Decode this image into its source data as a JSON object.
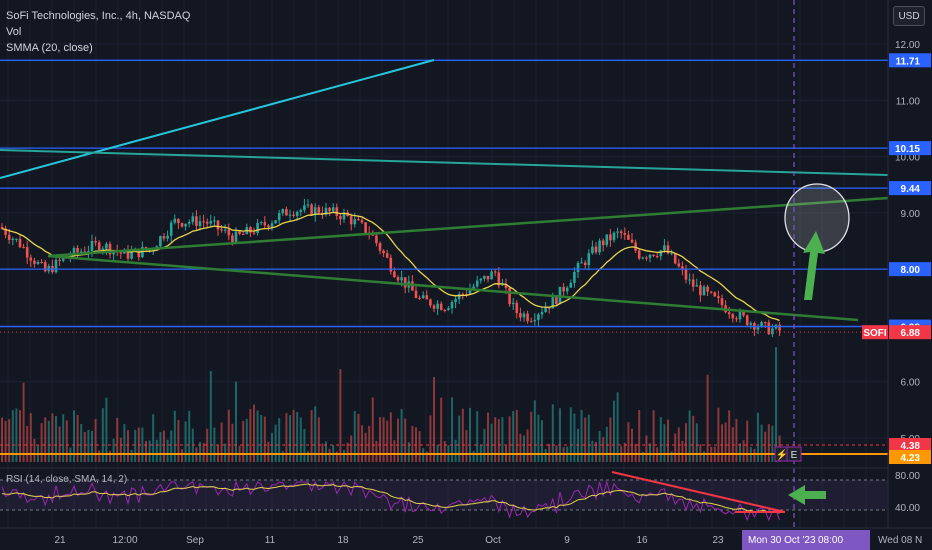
{
  "header": {
    "symbol_line": "SoFi Technologies, Inc., 4h, NASDAQ",
    "vol_label": "Vol",
    "smma_label": "SMMA (20, close)",
    "currency_button": "USD"
  },
  "rsi_panel": {
    "label": "RSI (14, close, SMA, 14, 2)",
    "ticks": [
      "80.00",
      "40.00"
    ]
  },
  "price_axis": {
    "ticks": [
      "12.00",
      "11.00",
      "10.00",
      "9.00",
      "8.00",
      "7.00",
      "6.00",
      "5.00"
    ],
    "badges": [
      {
        "text": "11.71",
        "color": "#2962ff",
        "value": 11.71
      },
      {
        "text": "10.15",
        "color": "#2962ff",
        "value": 10.15
      },
      {
        "text": "9.44",
        "color": "#2962ff",
        "value": 9.44
      },
      {
        "text": "8.00",
        "color": "#2962ff",
        "value": 8.0
      },
      {
        "text": "6.98",
        "color": "#2962ff",
        "value": 6.98
      },
      {
        "text": "6.88",
        "color": "#f23645",
        "value": 6.88
      },
      {
        "text": "4.38",
        "color": "#f23645",
        "value": 4.38
      },
      {
        "text": "4.23",
        "color": "#ff9800",
        "value": 4.23
      }
    ],
    "symbol_tag": "SOFI"
  },
  "time_axis": {
    "labels": [
      "21",
      "12:00",
      "Sep",
      "11",
      "18",
      "25",
      "Oct",
      "9",
      "16",
      "23"
    ],
    "highlight_date": "Mon 30 Oct '23",
    "highlight_time": "08:00",
    "next_date": "Wed 08 N"
  },
  "markers": {
    "lightning": "⚡",
    "earnings": "E"
  },
  "colors": {
    "background": "#131722",
    "up": "#26a69a",
    "down": "#ef5350",
    "horizontal_level": "#2962ff",
    "smma": "#e8d44d",
    "channel": "#2e7d32",
    "trend_cyan": "#26c6da",
    "arrow": "#4caf50",
    "rsi": "#9c27b0",
    "divergence": "#f23645",
    "cursor_line": "#7e57c2"
  },
  "chart_data": {
    "type": "candlestick",
    "ylim": [
      4.1,
      12.4
    ],
    "rsi_ylim": [
      20,
      90
    ],
    "horizontal_levels": [
      11.71,
      10.15,
      9.44,
      8.0,
      6.98
    ],
    "current_price": 6.88
  }
}
